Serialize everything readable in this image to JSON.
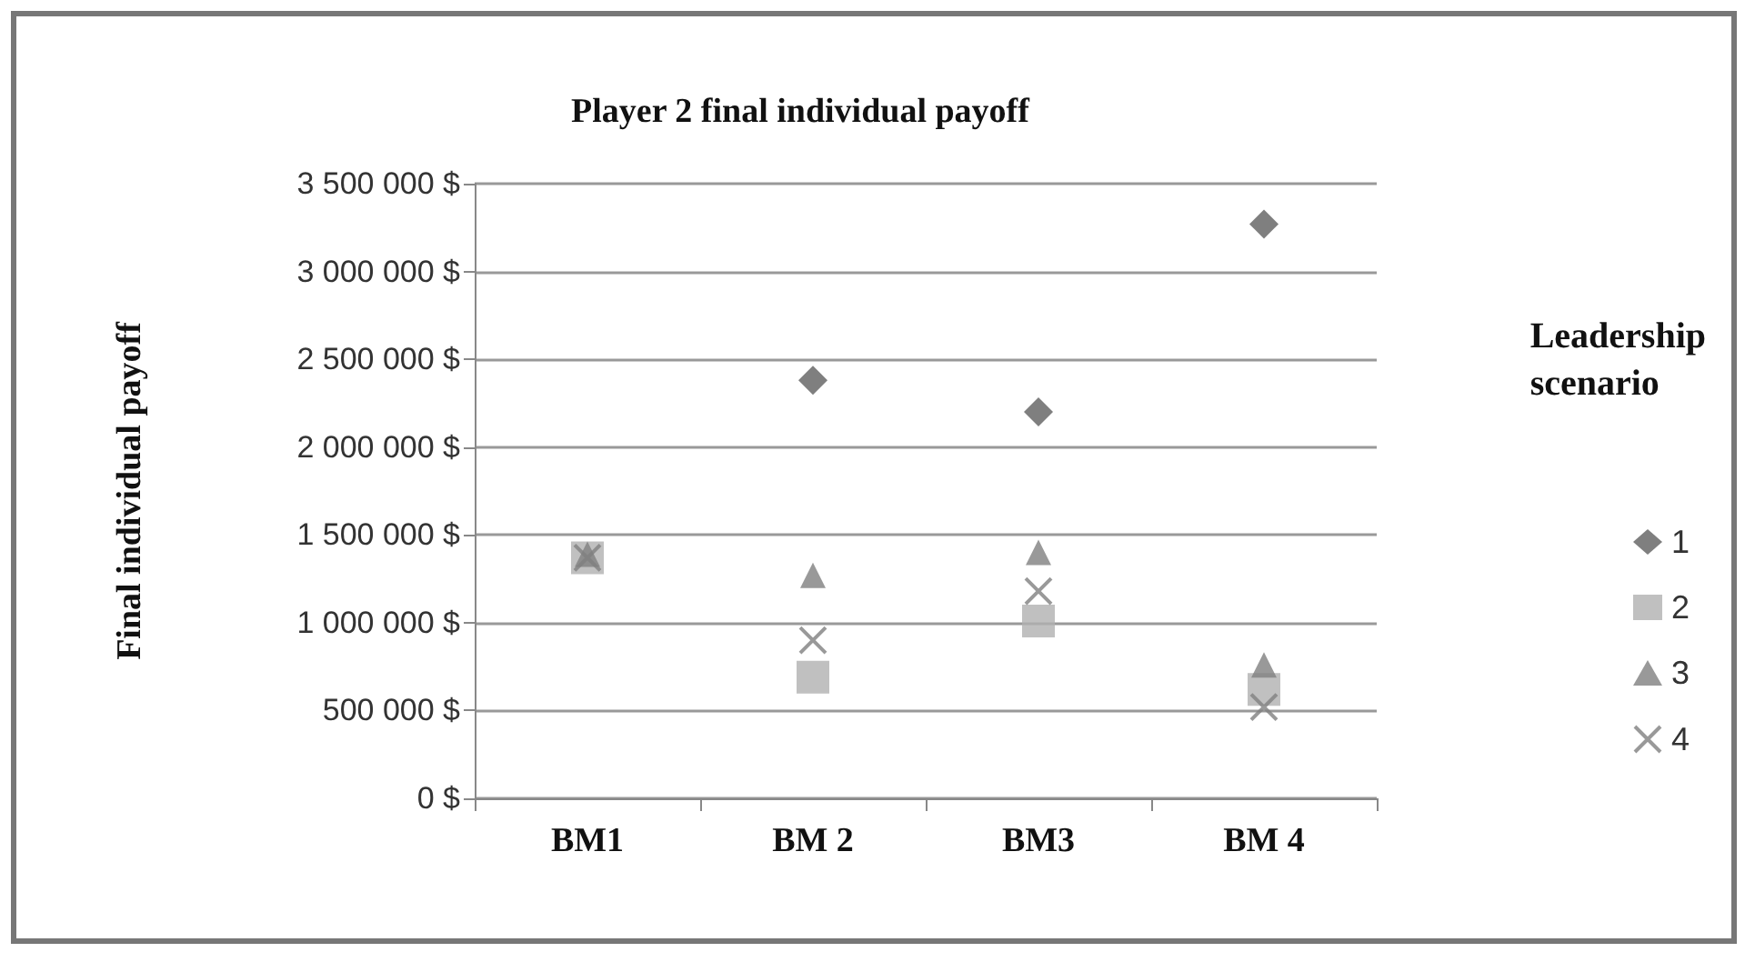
{
  "chart_data": {
    "type": "scatter",
    "title": "Player 2 final individual payoff",
    "ylabel": "Final individual payoff",
    "legend_title": "Leadership scenario",
    "categories": [
      "BM1",
      "BM 2",
      "BM3",
      "BM 4"
    ],
    "series": [
      {
        "name": "1",
        "color": "#5f5f5f",
        "marker": "diamond",
        "values": [
          null,
          2380000,
          2200000,
          3270000
        ]
      },
      {
        "name": "2",
        "color": "#b0b0b0",
        "marker": "square",
        "values": [
          1370000,
          690000,
          1010000,
          620000
        ]
      },
      {
        "name": "3",
        "color": "#808080",
        "marker": "triangle",
        "values": [
          1390000,
          1270000,
          1400000,
          760000
        ]
      },
      {
        "name": "4",
        "color": "#808080",
        "marker": "cross",
        "values": [
          1370000,
          900000,
          1180000,
          520000
        ]
      }
    ],
    "ylim": [
      0,
      3500000
    ],
    "yticks": [
      {
        "value": 0,
        "label": "0 $"
      },
      {
        "value": 500000,
        "label": "500 000 $"
      },
      {
        "value": 1000000,
        "label": "1 000 000 $"
      },
      {
        "value": 1500000,
        "label": "1 500 000 $"
      },
      {
        "value": 2000000,
        "label": "2 000 000 $"
      },
      {
        "value": 2500000,
        "label": "2 500 000 $"
      },
      {
        "value": 3000000,
        "label": "3 000 000 $"
      },
      {
        "value": 3500000,
        "label": "3 500 000 $"
      }
    ],
    "grid": "y",
    "legend": "right"
  }
}
